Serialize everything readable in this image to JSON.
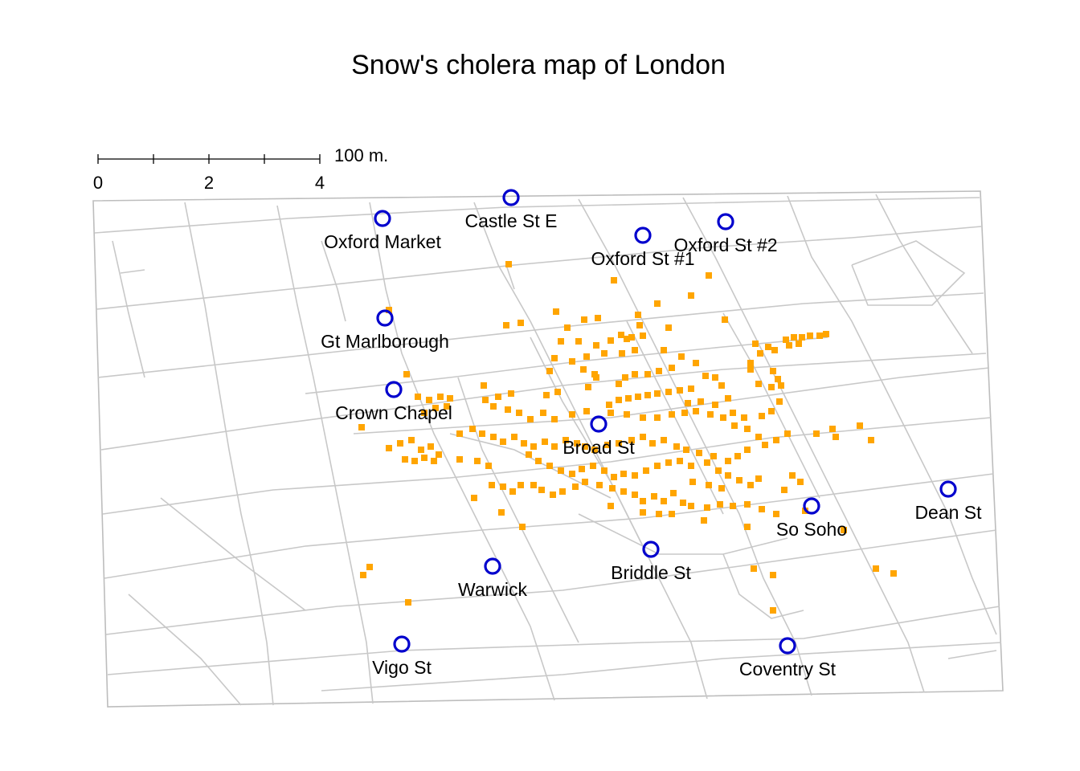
{
  "title": "Snow's cholera map of London",
  "scale_bar": {
    "unit_label": "100 m.",
    "ticks": [
      "0",
      "2",
      "4"
    ]
  },
  "colors": {
    "deaths": "#ffa500",
    "pumps": "#0000cd",
    "streets": "#c8c8c8"
  },
  "legend": {
    "deaths_marker": "orange-square",
    "pump_marker": "blue-ring"
  },
  "pumps": [
    {
      "name": "Oxford Market"
    },
    {
      "name": "Castle St E"
    },
    {
      "name": "Oxford St #1"
    },
    {
      "name": "Oxford St #2"
    },
    {
      "name": "Gt Marlborough"
    },
    {
      "name": "Crown Chapel"
    },
    {
      "name": "Broad St"
    },
    {
      "name": "Dean St"
    },
    {
      "name": "So Soho"
    },
    {
      "name": "Briddle St"
    },
    {
      "name": "Warwick"
    },
    {
      "name": "Vigo St"
    },
    {
      "name": "Coventry St"
    }
  ]
}
